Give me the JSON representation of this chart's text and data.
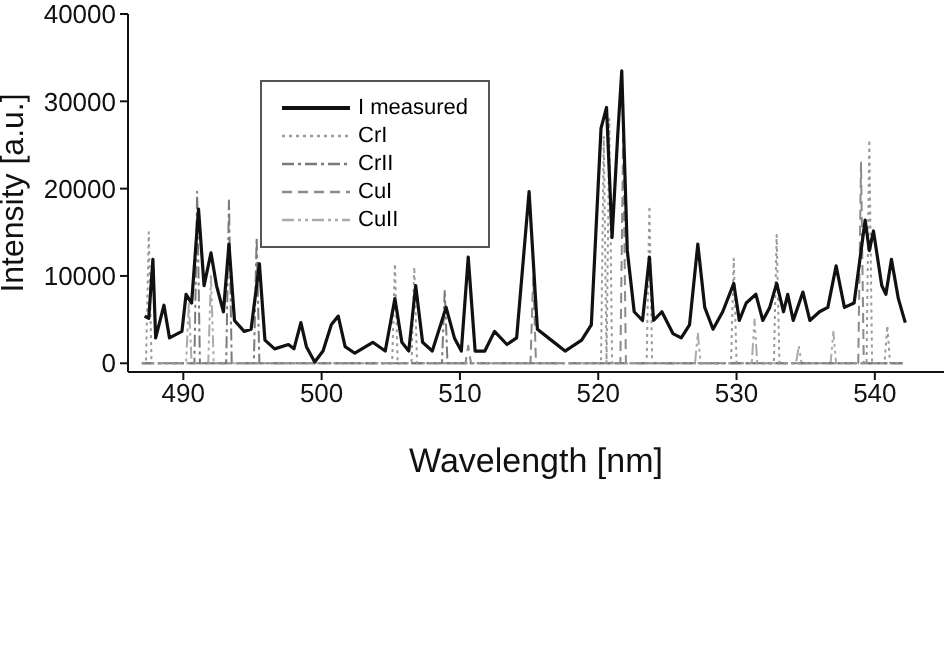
{
  "chart_data": {
    "type": "line",
    "xlabel": "Wavelength [nm]",
    "ylabel": "Intensity [a.u.]",
    "xlim": [
      486,
      545
    ],
    "ylim": [
      -1000,
      40000
    ],
    "xticks": [
      490,
      500,
      510,
      520,
      530,
      540
    ],
    "yticks": [
      0,
      10000,
      20000,
      30000,
      40000
    ],
    "grid": false,
    "legend": "top left",
    "marker": "none",
    "series": [
      {
        "name": "I measured",
        "color": "#111111",
        "line_style": "solid",
        "x": [
          487.2,
          487.5,
          487.8,
          488.0,
          488.6,
          489.0,
          489.9,
          490.2,
          490.6,
          491.1,
          491.5,
          492.0,
          492.4,
          492.9,
          493.3,
          493.7,
          494.4,
          494.9,
          495.5,
          495.9,
          496.6,
          497.6,
          498.0,
          498.5,
          498.9,
          499.5,
          500.1,
          500.7,
          501.2,
          501.7,
          502.4,
          503.7,
          504.6,
          505.3,
          505.8,
          506.3,
          506.8,
          507.3,
          508.0,
          509.0,
          509.6,
          510.1,
          510.6,
          511.1,
          511.8,
          512.5,
          513.4,
          514.1,
          515.0,
          515.6,
          516.6,
          517.6,
          518.8,
          519.5,
          520.2,
          520.6,
          521.0,
          521.4,
          521.7,
          522.1,
          522.6,
          523.2,
          523.7,
          524.0,
          524.6,
          525.4,
          526.0,
          526.6,
          527.2,
          527.7,
          528.3,
          529.0,
          529.8,
          530.2,
          530.7,
          531.4,
          531.9,
          532.4,
          532.9,
          533.4,
          533.7,
          534.1,
          534.8,
          535.3,
          536.0,
          536.6,
          537.2,
          537.8,
          538.5,
          539.3,
          539.6,
          539.9,
          540.5,
          540.8,
          541.2,
          541.7,
          542.2
        ],
        "values": [
          5400,
          5150,
          11900,
          2900,
          6650,
          2900,
          3650,
          7900,
          6900,
          17650,
          8900,
          12650,
          8900,
          5900,
          13650,
          4900,
          3650,
          3900,
          11400,
          2650,
          1650,
          2150,
          1650,
          4650,
          1900,
          150,
          1400,
          4400,
          5400,
          1900,
          1150,
          2400,
          1400,
          7400,
          2400,
          1400,
          8900,
          2400,
          1400,
          6400,
          2900,
          1400,
          12150,
          1400,
          1400,
          3650,
          2150,
          2900,
          19650,
          3900,
          2650,
          1400,
          2650,
          4400,
          26900,
          29300,
          14400,
          25900,
          33500,
          12900,
          5900,
          4900,
          12150,
          4900,
          5900,
          3400,
          2900,
          4400,
          13650,
          6400,
          3900,
          5900,
          9150,
          4900,
          6900,
          7900,
          4900,
          6400,
          9150,
          5900,
          7900,
          4900,
          8150,
          4900,
          5900,
          6400,
          11150,
          6400,
          6900,
          16400,
          12900,
          15150,
          8900,
          7900,
          11900,
          7400,
          4650
        ]
      },
      {
        "name": "CrI",
        "color": "#9a9a9a",
        "line_style": "dotted",
        "x": [
          487,
          487.3,
          487.5,
          487.7,
          505.1,
          505.3,
          505.5,
          506.5,
          506.7,
          506.9,
          520.2,
          520.4,
          520.6,
          520.8,
          521.0,
          523.5,
          523.7,
          523.9,
          529.6,
          529.8,
          530.0,
          532.7,
          532.9,
          533.1,
          539.4,
          539.6,
          539.8,
          540.7,
          540.9,
          541.1,
          542
        ],
        "values": [
          0,
          0,
          15000,
          0,
          0,
          11400,
          0,
          0,
          11000,
          0,
          0,
          26000,
          0,
          28000,
          0,
          0,
          18000,
          0,
          0,
          12000,
          0,
          0,
          14700,
          0,
          0,
          25600,
          0,
          0,
          4300,
          0,
          0
        ]
      },
      {
        "name": "CrII",
        "color": "#7a7a7a",
        "line_style": "dashdot",
        "x": [
          487,
          490.8,
          491.0,
          491.2,
          493.1,
          493.3,
          493.5,
          495.1,
          495.3,
          495.5,
          508.7,
          508.9,
          509.1,
          542
        ],
        "values": [
          0,
          0,
          19650,
          0,
          0,
          18650,
          0,
          0,
          14400,
          0,
          0,
          8400,
          0,
          0
        ]
      },
      {
        "name": "CuI",
        "color": "#8a8a8a",
        "line_style": "dashed",
        "x": [
          487,
          510.4,
          510.6,
          510.8,
          515.1,
          515.3,
          515.5,
          521.6,
          521.8,
          522.0,
          538.8,
          539.0,
          539.2,
          542
        ],
        "values": [
          0,
          0,
          2000,
          0,
          0,
          9900,
          0,
          0,
          25900,
          0,
          0,
          23000,
          0,
          0
        ]
      },
      {
        "name": "CuII",
        "color": "#aaaaaa",
        "line_style": "dashdotdot",
        "x": [
          487,
          490.2,
          490.4,
          490.6,
          491.8,
          492.0,
          492.2,
          527.0,
          527.2,
          527.4,
          531.1,
          531.3,
          531.5,
          534.3,
          534.5,
          534.7,
          536.8,
          537.0,
          537.2,
          542
        ],
        "values": [
          0,
          0,
          7000,
          0,
          0,
          10000,
          0,
          0,
          3500,
          0,
          0,
          5000,
          0,
          0,
          2000,
          0,
          0,
          3600,
          0,
          0
        ]
      }
    ]
  }
}
